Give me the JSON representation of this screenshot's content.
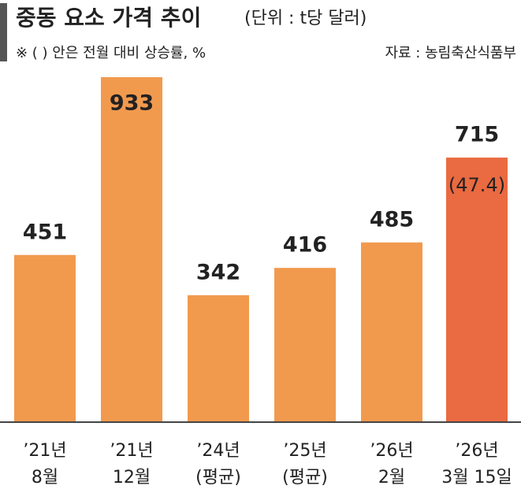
{
  "chart_data": {
    "type": "bar",
    "title": "중동 요소 가격 추이",
    "subtitle": "(단위 : t당 달러)",
    "note": "※ ( ) 안은 전월 대비 상승률, %",
    "source": "자료 : 농림축산식품부",
    "categories": [
      "’21년\n8월",
      "’21년\n12월",
      "’24년\n(평균)",
      "’25년\n(평균)",
      "’26년\n2월",
      "’26년\n3월 15일"
    ],
    "values": [
      451,
      933,
      342,
      416,
      485,
      715
    ],
    "colors": [
      "#f19a4e",
      "#f19a4e",
      "#f19a4e",
      "#f19a4e",
      "#f19a4e",
      "#ea6a41"
    ],
    "changes": [
      null,
      null,
      null,
      null,
      null,
      47.4
    ],
    "change_labels": [
      null,
      null,
      null,
      null,
      null,
      "(47.4)"
    ]
  }
}
